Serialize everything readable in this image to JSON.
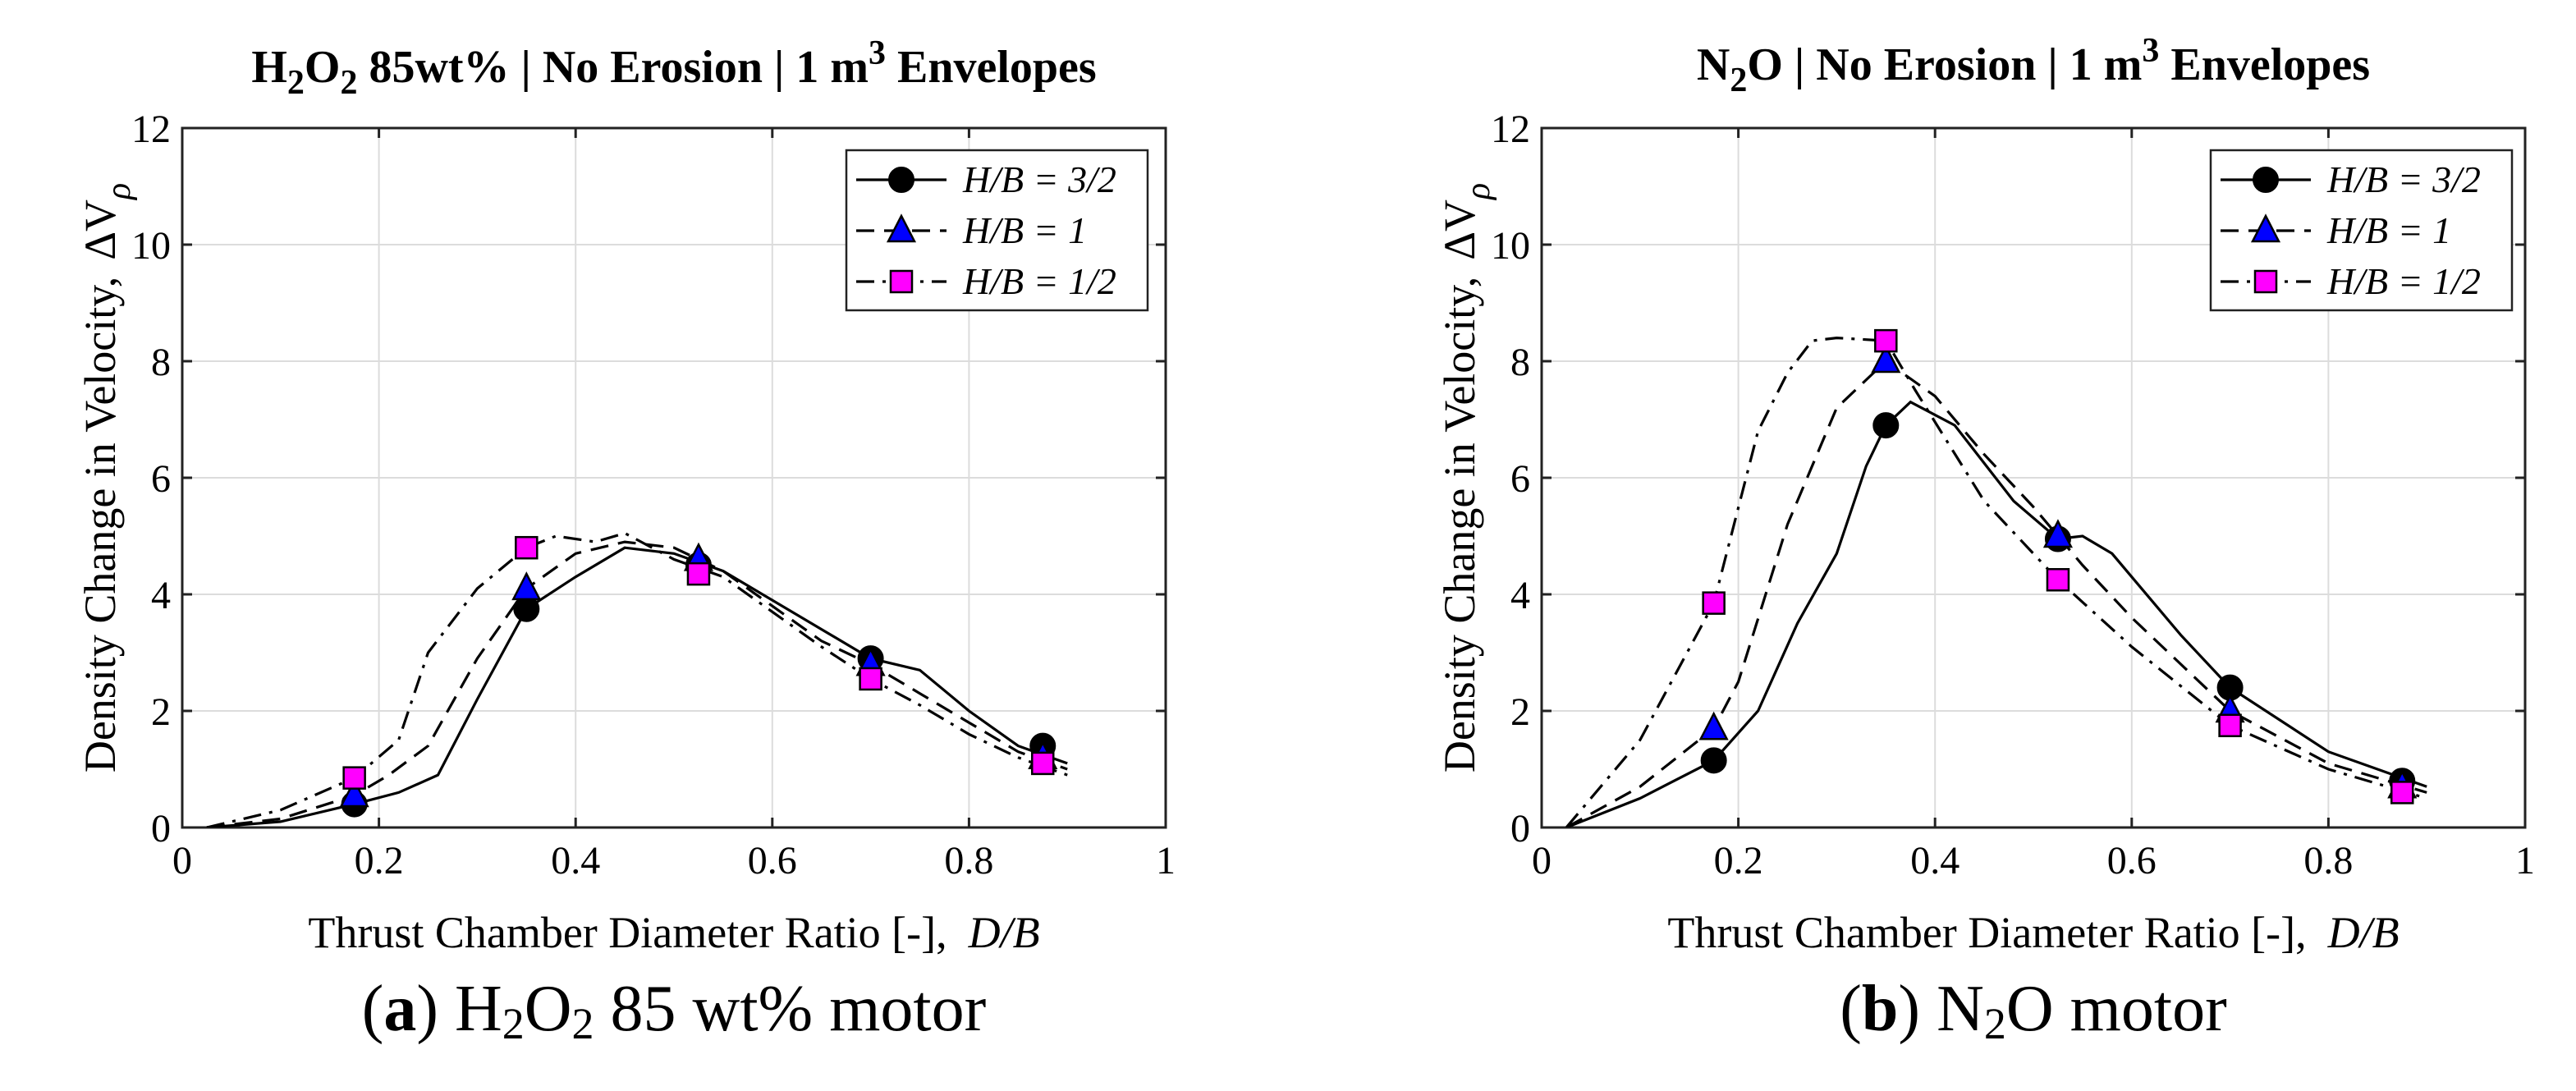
{
  "chart_data": [
    {
      "type": "line",
      "title": {
        "p1": "H",
        "s1": "2",
        "p2": "O",
        "s2": "2",
        "p3": " 85wt% | No Erosion | 1 m",
        "sup": "3",
        "p4": " Envelopes"
      },
      "xlabel": "Thrust Chamber Diameter Ratio [-],",
      "xlabel_var": "D/B",
      "ylabel": "Density Change in Velocity,",
      "ylabel_sym": "ΔV",
      "ylabel_sub": "ρ",
      "xlim": [
        0,
        1
      ],
      "ylim": [
        0,
        12
      ],
      "xticks": [
        "0",
        "0.2",
        "0.4",
        "0.6",
        "0.8",
        "1"
      ],
      "yticks": [
        "0",
        "2",
        "4",
        "6",
        "8",
        "10",
        "12"
      ],
      "grid": true,
      "legend_position": "top-right",
      "caption": {
        "open": "(",
        "letter": "a",
        "close": ")",
        "p1": " H",
        "s1": "2",
        "p2": "O",
        "s2": "2",
        "p3": " 85 wt% motor"
      },
      "series": [
        {
          "name": "H/B = 3/2",
          "line": "solid",
          "marker": "circle",
          "color": "#000000",
          "x": [
            0.025,
            0.1,
            0.175,
            0.22,
            0.26,
            0.3,
            0.35,
            0.4,
            0.45,
            0.5,
            0.55,
            0.6,
            0.65,
            0.7,
            0.75,
            0.8,
            0.85,
            0.9
          ],
          "y": [
            0.0,
            0.1,
            0.4,
            0.6,
            0.9,
            2.2,
            3.75,
            4.3,
            4.8,
            4.7,
            4.4,
            3.9,
            3.4,
            2.9,
            2.7,
            2.0,
            1.4,
            1.1
          ],
          "marker_x": [
            0.175,
            0.35,
            0.525,
            0.7,
            0.875
          ],
          "marker_y": [
            0.4,
            3.75,
            4.5,
            2.9,
            1.4
          ]
        },
        {
          "name": "H/B = 1",
          "line": "dashed",
          "marker": "triangle",
          "color": "#0000ff",
          "x": [
            0.025,
            0.1,
            0.175,
            0.21,
            0.25,
            0.3,
            0.35,
            0.4,
            0.45,
            0.5,
            0.55,
            0.6,
            0.65,
            0.7,
            0.75,
            0.8,
            0.85,
            0.9
          ],
          "y": [
            0.0,
            0.15,
            0.55,
            0.9,
            1.4,
            2.9,
            4.1,
            4.7,
            4.9,
            4.8,
            4.4,
            3.8,
            3.2,
            2.8,
            2.3,
            1.8,
            1.3,
            1.0
          ],
          "marker_x": [
            0.175,
            0.35,
            0.525,
            0.7,
            0.875
          ],
          "marker_y": [
            0.55,
            4.1,
            4.6,
            2.8,
            1.2
          ]
        },
        {
          "name": "H/B = 1/2",
          "line": "dashdot",
          "marker": "square",
          "color": "#ff00ff",
          "x": [
            0.025,
            0.1,
            0.175,
            0.22,
            0.25,
            0.3,
            0.35,
            0.38,
            0.42,
            0.45,
            0.5,
            0.55,
            0.6,
            0.65,
            0.7,
            0.75,
            0.8,
            0.85,
            0.9
          ],
          "y": [
            0.0,
            0.3,
            0.85,
            1.5,
            3.0,
            4.1,
            4.8,
            5.0,
            4.9,
            5.05,
            4.6,
            4.3,
            3.7,
            3.1,
            2.55,
            2.1,
            1.6,
            1.2,
            0.9
          ],
          "marker_x": [
            0.175,
            0.35,
            0.525,
            0.7,
            0.875
          ],
          "marker_y": [
            0.85,
            4.8,
            4.35,
            2.55,
            1.1
          ]
        }
      ]
    },
    {
      "type": "line",
      "title": {
        "p1": "N",
        "s1": "2",
        "p2": "O | No Erosion | 1 m",
        "sup": "3",
        "p3": " Envelopes"
      },
      "xlabel": "Thrust Chamber Diameter Ratio [-],",
      "xlabel_var": "D/B",
      "ylabel": "Density Change in Velocity,",
      "ylabel_sym": "ΔV",
      "ylabel_sub": "ρ",
      "xlim": [
        0,
        1
      ],
      "ylim": [
        0,
        12
      ],
      "xticks": [
        "0",
        "0.2",
        "0.4",
        "0.6",
        "0.8",
        "1"
      ],
      "yticks": [
        "0",
        "2",
        "4",
        "6",
        "8",
        "10",
        "12"
      ],
      "grid": true,
      "legend_position": "top-right",
      "caption": {
        "open": "(",
        "letter": "b",
        "close": ")",
        "p1": " N",
        "s1": "2",
        "p2": "O motor"
      },
      "series": [
        {
          "name": "H/B = 3/2",
          "line": "solid",
          "marker": "circle",
          "color": "#000000",
          "x": [
            0.025,
            0.1,
            0.175,
            0.22,
            0.26,
            0.3,
            0.33,
            0.35,
            0.375,
            0.42,
            0.48,
            0.525,
            0.55,
            0.58,
            0.65,
            0.7,
            0.8,
            0.9
          ],
          "y": [
            0.0,
            0.5,
            1.15,
            2.0,
            3.5,
            4.7,
            6.2,
            6.9,
            7.3,
            6.9,
            5.6,
            4.95,
            5.0,
            4.7,
            3.3,
            2.4,
            1.3,
            0.7
          ],
          "marker_x": [
            0.175,
            0.35,
            0.525,
            0.7,
            0.875
          ],
          "marker_y": [
            1.15,
            6.9,
            4.95,
            2.4,
            0.8
          ]
        },
        {
          "name": "H/B = 1",
          "line": "dashed",
          "marker": "triangle",
          "color": "#0000ff",
          "x": [
            0.025,
            0.1,
            0.175,
            0.2,
            0.25,
            0.3,
            0.35,
            0.4,
            0.45,
            0.5,
            0.55,
            0.6,
            0.7,
            0.8,
            0.9
          ],
          "y": [
            0.0,
            0.7,
            1.7,
            2.5,
            5.2,
            7.2,
            8.0,
            7.4,
            6.4,
            5.5,
            4.5,
            3.6,
            2.0,
            1.1,
            0.6
          ],
          "marker_x": [
            0.175,
            0.35,
            0.525,
            0.7,
            0.875
          ],
          "marker_y": [
            1.7,
            8.0,
            5.0,
            2.0,
            0.7
          ]
        },
        {
          "name": "H/B = 1/2",
          "line": "dashdot",
          "marker": "square",
          "color": "#ff00ff",
          "x": [
            0.025,
            0.1,
            0.175,
            0.22,
            0.25,
            0.275,
            0.3,
            0.35,
            0.38,
            0.45,
            0.525,
            0.6,
            0.7,
            0.8,
            0.9
          ],
          "y": [
            0.0,
            1.5,
            3.85,
            6.8,
            7.8,
            8.35,
            8.4,
            8.35,
            7.5,
            5.6,
            4.25,
            3.1,
            1.75,
            1.0,
            0.5
          ],
          "marker_x": [
            0.175,
            0.35,
            0.525,
            0.7,
            0.875
          ],
          "marker_y": [
            3.85,
            8.35,
            4.25,
            1.75,
            0.6
          ]
        }
      ]
    }
  ]
}
